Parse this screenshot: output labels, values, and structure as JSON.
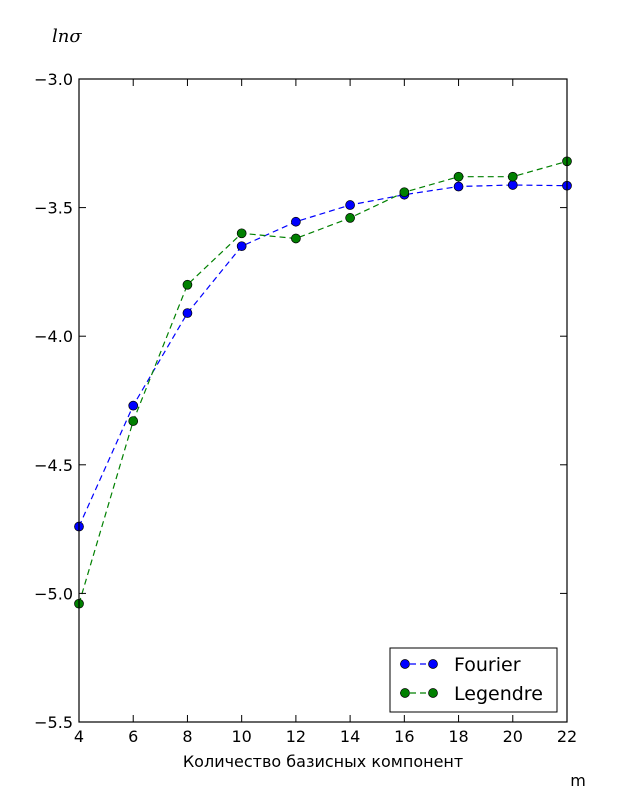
{
  "chart_data": {
    "type": "line",
    "ylabel": "lnσ",
    "xlabel": "Количество базисных компонент",
    "xlabel_extra": "m",
    "xlim": [
      4,
      22
    ],
    "ylim": [
      -5.5,
      -3.0
    ],
    "xticks": [
      4,
      6,
      8,
      10,
      12,
      14,
      16,
      18,
      20,
      22
    ],
    "xtick_labels": [
      "4",
      "6",
      "8",
      "10",
      "12",
      "14",
      "16",
      "18",
      "20",
      "22"
    ],
    "yticks": [
      -3.0,
      -3.5,
      -4.0,
      -4.5,
      -5.0,
      -5.5
    ],
    "ytick_labels": [
      "−3.0",
      "−3.5",
      "−4.0",
      "−4.5",
      "−5.0",
      "−5.5"
    ],
    "grid": false,
    "legend_position": "lower-right",
    "x": [
      4,
      6,
      8,
      10,
      12,
      14,
      16,
      18,
      20,
      22
    ],
    "series": [
      {
        "name": "Fourier",
        "color": "#0000ff",
        "line_style": "dashed",
        "marker": "circle",
        "values": [
          -4.74,
          -4.27,
          -3.91,
          -3.65,
          -3.555,
          -3.49,
          -3.45,
          -3.418,
          -3.412,
          -3.415
        ]
      },
      {
        "name": "Legendre",
        "color": "#008000",
        "line_style": "dashed",
        "marker": "circle",
        "values": [
          -5.04,
          -4.33,
          -3.8,
          -3.6,
          -3.62,
          -3.54,
          -3.44,
          -3.38,
          -3.38,
          -3.32
        ]
      }
    ]
  }
}
